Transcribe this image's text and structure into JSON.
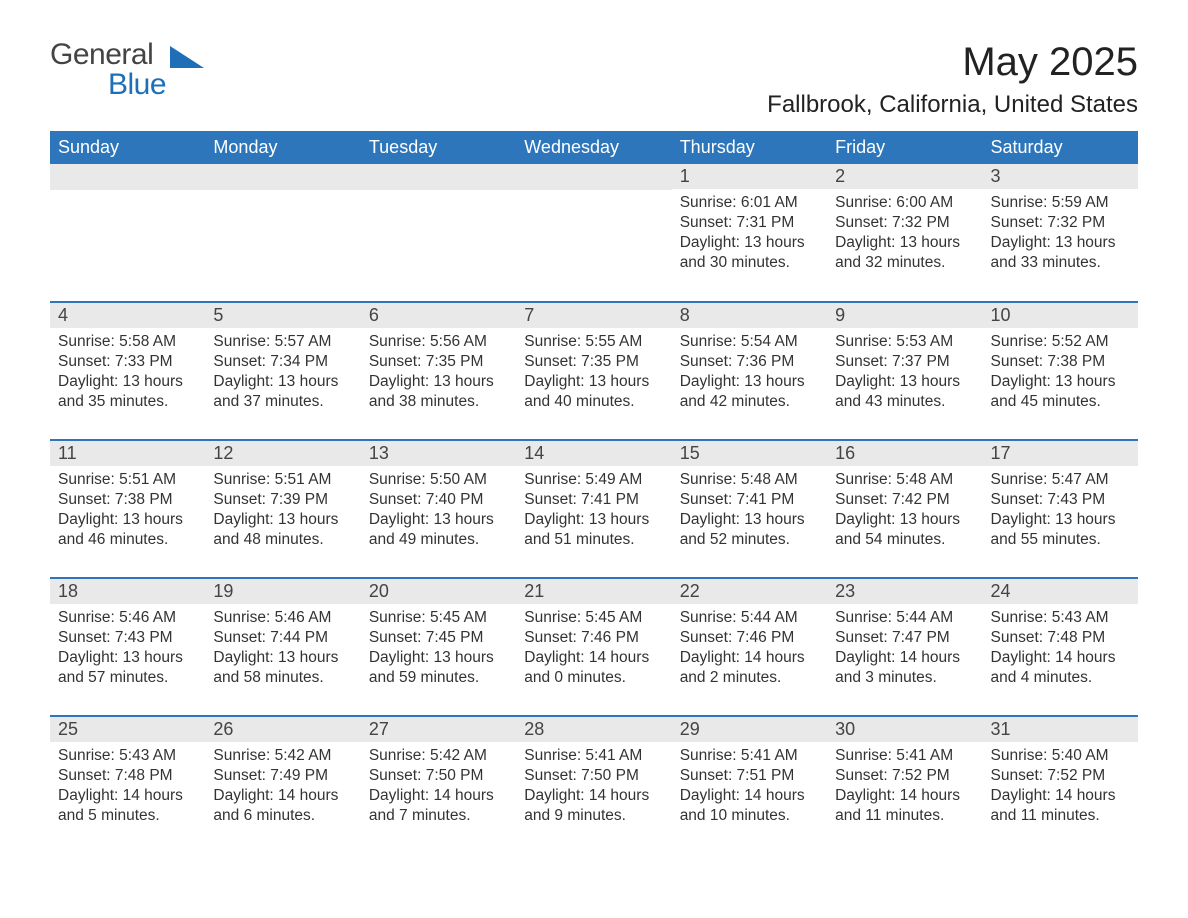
{
  "logo": {
    "general": "General",
    "blue": "Blue",
    "shape_color": "#1f6fb8"
  },
  "title": "May 2025",
  "location": "Fallbrook, California, United States",
  "header_bg": "#2d76bb",
  "daynum_bg": "#e9e9e9",
  "columns": [
    "Sunday",
    "Monday",
    "Tuesday",
    "Wednesday",
    "Thursday",
    "Friday",
    "Saturday"
  ],
  "labels": {
    "sunrise": "Sunrise: ",
    "sunset": "Sunset: ",
    "daylight": "Daylight: "
  },
  "weeks": [
    [
      {
        "day": "",
        "sunrise": "",
        "sunset": "",
        "daylight": ""
      },
      {
        "day": "",
        "sunrise": "",
        "sunset": "",
        "daylight": ""
      },
      {
        "day": "",
        "sunrise": "",
        "sunset": "",
        "daylight": ""
      },
      {
        "day": "",
        "sunrise": "",
        "sunset": "",
        "daylight": ""
      },
      {
        "day": "1",
        "sunrise": "6:01 AM",
        "sunset": "7:31 PM",
        "daylight": "13 hours and 30 minutes."
      },
      {
        "day": "2",
        "sunrise": "6:00 AM",
        "sunset": "7:32 PM",
        "daylight": "13 hours and 32 minutes."
      },
      {
        "day": "3",
        "sunrise": "5:59 AM",
        "sunset": "7:32 PM",
        "daylight": "13 hours and 33 minutes."
      }
    ],
    [
      {
        "day": "4",
        "sunrise": "5:58 AM",
        "sunset": "7:33 PM",
        "daylight": "13 hours and 35 minutes."
      },
      {
        "day": "5",
        "sunrise": "5:57 AM",
        "sunset": "7:34 PM",
        "daylight": "13 hours and 37 minutes."
      },
      {
        "day": "6",
        "sunrise": "5:56 AM",
        "sunset": "7:35 PM",
        "daylight": "13 hours and 38 minutes."
      },
      {
        "day": "7",
        "sunrise": "5:55 AM",
        "sunset": "7:35 PM",
        "daylight": "13 hours and 40 minutes."
      },
      {
        "day": "8",
        "sunrise": "5:54 AM",
        "sunset": "7:36 PM",
        "daylight": "13 hours and 42 minutes."
      },
      {
        "day": "9",
        "sunrise": "5:53 AM",
        "sunset": "7:37 PM",
        "daylight": "13 hours and 43 minutes."
      },
      {
        "day": "10",
        "sunrise": "5:52 AM",
        "sunset": "7:38 PM",
        "daylight": "13 hours and 45 minutes."
      }
    ],
    [
      {
        "day": "11",
        "sunrise": "5:51 AM",
        "sunset": "7:38 PM",
        "daylight": "13 hours and 46 minutes."
      },
      {
        "day": "12",
        "sunrise": "5:51 AM",
        "sunset": "7:39 PM",
        "daylight": "13 hours and 48 minutes."
      },
      {
        "day": "13",
        "sunrise": "5:50 AM",
        "sunset": "7:40 PM",
        "daylight": "13 hours and 49 minutes."
      },
      {
        "day": "14",
        "sunrise": "5:49 AM",
        "sunset": "7:41 PM",
        "daylight": "13 hours and 51 minutes."
      },
      {
        "day": "15",
        "sunrise": "5:48 AM",
        "sunset": "7:41 PM",
        "daylight": "13 hours and 52 minutes."
      },
      {
        "day": "16",
        "sunrise": "5:48 AM",
        "sunset": "7:42 PM",
        "daylight": "13 hours and 54 minutes."
      },
      {
        "day": "17",
        "sunrise": "5:47 AM",
        "sunset": "7:43 PM",
        "daylight": "13 hours and 55 minutes."
      }
    ],
    [
      {
        "day": "18",
        "sunrise": "5:46 AM",
        "sunset": "7:43 PM",
        "daylight": "13 hours and 57 minutes."
      },
      {
        "day": "19",
        "sunrise": "5:46 AM",
        "sunset": "7:44 PM",
        "daylight": "13 hours and 58 minutes."
      },
      {
        "day": "20",
        "sunrise": "5:45 AM",
        "sunset": "7:45 PM",
        "daylight": "13 hours and 59 minutes."
      },
      {
        "day": "21",
        "sunrise": "5:45 AM",
        "sunset": "7:46 PM",
        "daylight": "14 hours and 0 minutes."
      },
      {
        "day": "22",
        "sunrise": "5:44 AM",
        "sunset": "7:46 PM",
        "daylight": "14 hours and 2 minutes."
      },
      {
        "day": "23",
        "sunrise": "5:44 AM",
        "sunset": "7:47 PM",
        "daylight": "14 hours and 3 minutes."
      },
      {
        "day": "24",
        "sunrise": "5:43 AM",
        "sunset": "7:48 PM",
        "daylight": "14 hours and 4 minutes."
      }
    ],
    [
      {
        "day": "25",
        "sunrise": "5:43 AM",
        "sunset": "7:48 PM",
        "daylight": "14 hours and 5 minutes."
      },
      {
        "day": "26",
        "sunrise": "5:42 AM",
        "sunset": "7:49 PM",
        "daylight": "14 hours and 6 minutes."
      },
      {
        "day": "27",
        "sunrise": "5:42 AM",
        "sunset": "7:50 PM",
        "daylight": "14 hours and 7 minutes."
      },
      {
        "day": "28",
        "sunrise": "5:41 AM",
        "sunset": "7:50 PM",
        "daylight": "14 hours and 9 minutes."
      },
      {
        "day": "29",
        "sunrise": "5:41 AM",
        "sunset": "7:51 PM",
        "daylight": "14 hours and 10 minutes."
      },
      {
        "day": "30",
        "sunrise": "5:41 AM",
        "sunset": "7:52 PM",
        "daylight": "14 hours and 11 minutes."
      },
      {
        "day": "31",
        "sunrise": "5:40 AM",
        "sunset": "7:52 PM",
        "daylight": "14 hours and 11 minutes."
      }
    ]
  ]
}
